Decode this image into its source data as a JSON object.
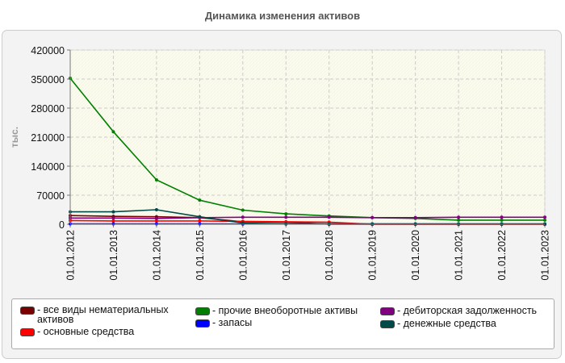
{
  "title": "Динамика изменения активов",
  "chart_data": {
    "type": "line",
    "title": "Динамика изменения активов",
    "ylabel": "тыс.",
    "xlabel": "",
    "ylim": [
      0,
      420000
    ],
    "yticks": [
      0,
      70000,
      140000,
      210000,
      280000,
      350000,
      420000
    ],
    "yticklabels": [
      "0",
      "70000",
      "140000",
      "210000",
      "280000",
      "350000",
      "420000"
    ],
    "categories": [
      "01.01.2012",
      "01.01.2013",
      "01.01.2014",
      "01.01.2015",
      "01.01.2016",
      "01.01.2017",
      "01.01.2018",
      "01.01.2019",
      "01.01.2020",
      "01.01.2021",
      "01.01.2022",
      "01.01.2023"
    ],
    "grid": true,
    "legend_position": "bottom",
    "series": [
      {
        "name": "все виды нематериальных активов",
        "color": "#7a0000",
        "values": [
          21000,
          19000,
          18000,
          16000,
          6000,
          5000,
          0,
          0,
          0,
          0,
          0,
          0
        ]
      },
      {
        "name": "основные средства",
        "color": "#ff0000",
        "values": [
          9000,
          8000,
          8000,
          8000,
          7000,
          6000,
          5000,
          0,
          0,
          0,
          0,
          0
        ]
      },
      {
        "name": "прочие внеоборотные активы",
        "color": "#008000",
        "values": [
          352000,
          223000,
          107000,
          58000,
          34000,
          25000,
          20000,
          16000,
          14000,
          10000,
          10000,
          10000
        ]
      },
      {
        "name": "запасы",
        "color": "#0000ff",
        "values": [
          1000,
          1000,
          1000,
          1000,
          500,
          500,
          500,
          500,
          500,
          500,
          500,
          500
        ]
      },
      {
        "name": "дебиторская задолженность",
        "color": "#800080",
        "values": [
          15000,
          15000,
          14000,
          16000,
          17000,
          17000,
          17000,
          16000,
          16000,
          17000,
          17000,
          17000
        ]
      },
      {
        "name": "денежные средства",
        "color": "#004a4a",
        "values": [
          30000,
          30000,
          35000,
          18000,
          3000,
          1000,
          1000,
          1000,
          1000,
          1000,
          1000,
          1000
        ]
      }
    ]
  }
}
